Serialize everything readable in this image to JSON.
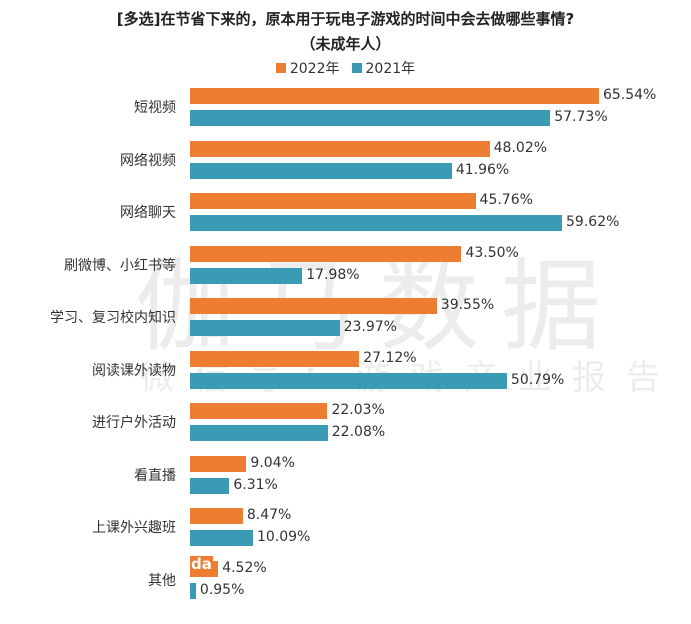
{
  "title": {
    "line1": "[多选]在节省下来的，原本用于玩电子游戏的时间中会去做哪些事情?",
    "line2": "（未成年人）"
  },
  "legend": [
    {
      "label": "2022年",
      "color": "#ED7D31"
    },
    {
      "label": "2021年",
      "color": "#3A9BB5"
    }
  ],
  "watermark": {
    "main": "伽马数据",
    "sub": "微信号：游戏产业报告"
  },
  "overlay_text": "da",
  "colors": {
    "s2022": "#ED7D31",
    "s2021": "#3A9BB5"
  },
  "rows": [
    {
      "label": "短视频",
      "v2022": "65.54%",
      "v2021": "57.73%"
    },
    {
      "label": "网络视频",
      "v2022": "48.02%",
      "v2021": "41.96%"
    },
    {
      "label": "网络聊天",
      "v2022": "45.76%",
      "v2021": "59.62%"
    },
    {
      "label": "刷微博、小红书等",
      "v2022": "43.50%",
      "v2021": "17.98%"
    },
    {
      "label": "学习、复习校内知识",
      "v2022": "39.55%",
      "v2021": "23.97%"
    },
    {
      "label": "阅读课外读物",
      "v2022": "27.12%",
      "v2021": "50.79%"
    },
    {
      "label": "进行户外活动",
      "v2022": "22.03%",
      "v2021": "22.08%"
    },
    {
      "label": "看直播",
      "v2022": "9.04%",
      "v2021": "6.31%"
    },
    {
      "label": "上课外兴趣班",
      "v2022": "8.47%",
      "v2021": "10.09%"
    },
    {
      "label": "其他",
      "v2022": "4.52%",
      "v2021": "0.95%"
    }
  ],
  "chart_data": {
    "type": "bar",
    "orientation": "horizontal",
    "title": "[多选]在节省下来的，原本用于玩电子游戏的时间中会去做哪些事情?（未成年人）",
    "xlabel": "",
    "ylabel": "",
    "unit": "%",
    "grid": false,
    "legend_position": "top",
    "categories": [
      "短视频",
      "网络视频",
      "网络聊天",
      "刷微博、小红书等",
      "学习、复习校内知识",
      "阅读课外读物",
      "进行户外活动",
      "看直播",
      "上课外兴趣班",
      "其他"
    ],
    "series": [
      {
        "name": "2022年",
        "color": "#ED7D31",
        "values": [
          65.54,
          48.02,
          45.76,
          43.5,
          39.55,
          27.12,
          22.03,
          9.04,
          8.47,
          4.52
        ]
      },
      {
        "name": "2021年",
        "color": "#3A9BB5",
        "values": [
          57.73,
          41.96,
          59.62,
          17.98,
          23.97,
          50.79,
          22.08,
          6.31,
          10.09,
          0.95
        ]
      }
    ],
    "xlim": [
      0,
      70
    ]
  }
}
